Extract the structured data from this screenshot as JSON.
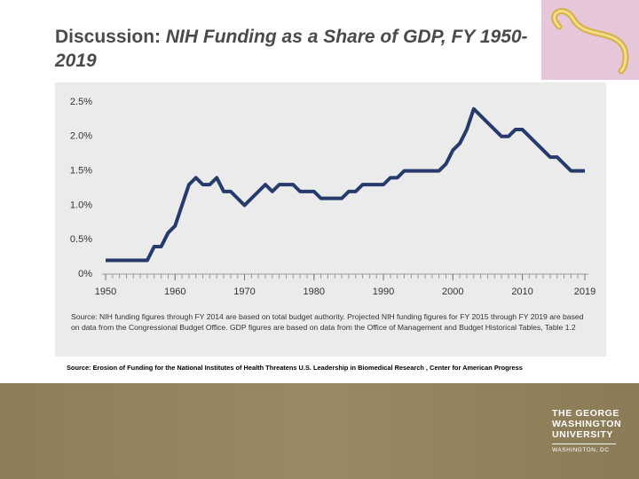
{
  "header": {
    "title_prefix": "Discussion: ",
    "title": "NIH Funding as a Share of GDP, FY 1950-2019"
  },
  "chart_data": {
    "type": "line",
    "x": [
      1950,
      1951,
      1952,
      1953,
      1954,
      1955,
      1956,
      1957,
      1958,
      1959,
      1960,
      1961,
      1962,
      1963,
      1964,
      1965,
      1966,
      1967,
      1968,
      1969,
      1970,
      1971,
      1972,
      1973,
      1974,
      1975,
      1976,
      1977,
      1978,
      1979,
      1980,
      1981,
      1982,
      1983,
      1984,
      1985,
      1986,
      1987,
      1988,
      1989,
      1990,
      1991,
      1992,
      1993,
      1994,
      1995,
      1996,
      1997,
      1998,
      1999,
      2000,
      2001,
      2002,
      2003,
      2004,
      2005,
      2006,
      2007,
      2008,
      2009,
      2010,
      2011,
      2012,
      2013,
      2014,
      2015,
      2016,
      2017,
      2018,
      2019
    ],
    "series": [
      {
        "color": "#263a6b",
        "values": [
          0.2,
          0.2,
          0.2,
          0.2,
          0.2,
          0.2,
          0.2,
          0.4,
          0.4,
          0.6,
          0.7,
          1.0,
          1.3,
          1.4,
          1.3,
          1.3,
          1.4,
          1.2,
          1.2,
          1.1,
          1.0,
          1.1,
          1.2,
          1.3,
          1.2,
          1.3,
          1.3,
          1.3,
          1.2,
          1.2,
          1.2,
          1.1,
          1.1,
          1.1,
          1.1,
          1.2,
          1.2,
          1.3,
          1.3,
          1.3,
          1.3,
          1.4,
          1.4,
          1.5,
          1.5,
          1.5,
          1.5,
          1.5,
          1.5,
          1.6,
          1.8,
          1.9,
          2.1,
          2.4,
          2.3,
          2.2,
          2.1,
          2.0,
          2.0,
          2.1,
          2.1,
          2.0,
          1.9,
          1.8,
          1.7,
          1.7,
          1.6,
          1.5,
          1.5,
          1.5
        ]
      }
    ],
    "xlim": [
      1950,
      2019
    ],
    "xticks": [
      1950,
      1960,
      1970,
      1980,
      1990,
      2000,
      2010,
      2019
    ],
    "ylim": [
      0,
      2.5
    ],
    "yticks": [
      {
        "value": 0,
        "label": "0%"
      },
      {
        "value": 0.5,
        "label": "0.5%"
      },
      {
        "value": 1.0,
        "label": "1.0%"
      },
      {
        "value": 1.5,
        "label": "1.5%"
      },
      {
        "value": 2.0,
        "label": "2.0%"
      },
      {
        "value": 2.5,
        "label": "2.5%"
      }
    ],
    "grid": false,
    "note": "Source: NIH funding figures through FY 2014 are based on total budget authority. Projected NIH funding figures for FY 2015 through FY 2019 are based on data from the Congressional Budget Office. GDP figures are based on data from the Office of Management and Budget Historical Tables, Table 1.2"
  },
  "source": "Source: Erosion of Funding for the National Institutes of Health Threatens U.S. Leadership in Biomedical Research , Center for American Progress",
  "logo": {
    "lines": [
      "THE GEORGE",
      "WASHINGTON",
      "UNIVERSITY"
    ],
    "location": "WASHINGTON, DC"
  }
}
